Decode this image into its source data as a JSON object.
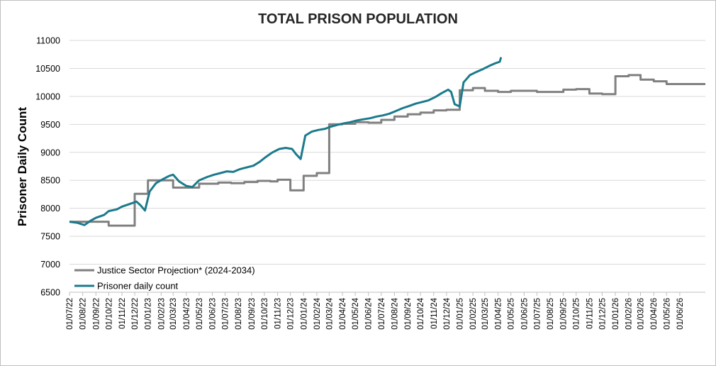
{
  "chart_data": {
    "type": "line",
    "title": "TOTAL PRISON POPULATION",
    "ylabel": "Prisoner  Daily Count",
    "xlabel": "",
    "ylim": [
      6500,
      11000
    ],
    "yticks": [
      6500,
      7000,
      7500,
      8000,
      8500,
      9000,
      9500,
      10000,
      10500,
      11000
    ],
    "x_range": [
      "2022-07-01",
      "2026-07-31"
    ],
    "xtick_labels": [
      "01/07/22",
      "01/08/22",
      "01/09/22",
      "01/10/22",
      "01/11/22",
      "01/12/22",
      "01/01/23",
      "01/02/23",
      "01/03/23",
      "01/04/23",
      "01/05/23",
      "01/06/23",
      "01/07/23",
      "01/08/23",
      "01/09/23",
      "01/10/23",
      "01/11/23",
      "01/12/23",
      "01/01/24",
      "01/02/24",
      "01/03/24",
      "01/04/24",
      "01/05/24",
      "01/06/24",
      "01/07/24",
      "01/08/24",
      "01/09/24",
      "01/10/24",
      "01/11/24",
      "01/12/24",
      "01/01/25",
      "01/02/25",
      "01/03/25",
      "01/04/25",
      "01/05/25",
      "01/06/25",
      "01/07/25",
      "01/08/25",
      "01/09/25",
      "01/10/25",
      "01/11/25",
      "01/12/25",
      "01/01/26",
      "01/02/26",
      "01/03/26",
      "01/04/26",
      "01/05/26",
      "01/06/26"
    ],
    "grid": true,
    "legend_position": "bottom-left",
    "series": [
      {
        "name": "Justice Sector Projection* (2024-2034)",
        "color": "#808080",
        "style": "step",
        "points": [
          [
            "2022-07-01",
            7760
          ],
          [
            "2022-10-01",
            7690
          ],
          [
            "2022-12-01",
            8260
          ],
          [
            "2023-01-01",
            8500
          ],
          [
            "2023-03-01",
            8370
          ],
          [
            "2023-05-01",
            8440
          ],
          [
            "2023-06-15",
            8460
          ],
          [
            "2023-07-15",
            8450
          ],
          [
            "2023-08-15",
            8470
          ],
          [
            "2023-09-15",
            8490
          ],
          [
            "2023-10-15",
            8480
          ],
          [
            "2023-11-01",
            8510
          ],
          [
            "2023-12-01",
            8320
          ],
          [
            "2024-01-01",
            8580
          ],
          [
            "2024-02-01",
            8630
          ],
          [
            "2024-03-01",
            9500
          ],
          [
            "2024-04-01",
            9510
          ],
          [
            "2024-05-01",
            9540
          ],
          [
            "2024-06-01",
            9530
          ],
          [
            "2024-07-01",
            9580
          ],
          [
            "2024-08-01",
            9640
          ],
          [
            "2024-09-01",
            9680
          ],
          [
            "2024-10-01",
            9710
          ],
          [
            "2024-11-01",
            9750
          ],
          [
            "2024-12-01",
            9760
          ],
          [
            "2025-01-01",
            10110
          ],
          [
            "2025-02-01",
            10150
          ],
          [
            "2025-03-01",
            10100
          ],
          [
            "2025-04-01",
            10080
          ],
          [
            "2025-05-01",
            10100
          ],
          [
            "2025-07-01",
            10080
          ],
          [
            "2025-09-01",
            10120
          ],
          [
            "2025-10-01",
            10130
          ],
          [
            "2025-11-01",
            10050
          ],
          [
            "2025-12-01",
            10040
          ],
          [
            "2026-01-01",
            10360
          ],
          [
            "2026-02-01",
            10380
          ],
          [
            "2026-03-01",
            10300
          ],
          [
            "2026-04-01",
            10270
          ],
          [
            "2026-05-01",
            10220
          ],
          [
            "2026-07-31",
            10220
          ]
        ]
      },
      {
        "name": "Prisoner daily count",
        "color": "#1b7a8c",
        "style": "line",
        "points": [
          [
            "2022-07-01",
            7760
          ],
          [
            "2022-07-20",
            7740
          ],
          [
            "2022-08-05",
            7700
          ],
          [
            "2022-08-20",
            7780
          ],
          [
            "2022-09-01",
            7830
          ],
          [
            "2022-09-20",
            7880
          ],
          [
            "2022-10-01",
            7950
          ],
          [
            "2022-10-20",
            7980
          ],
          [
            "2022-11-01",
            8030
          ],
          [
            "2022-11-20",
            8080
          ],
          [
            "2022-12-05",
            8120
          ],
          [
            "2022-12-15",
            8050
          ],
          [
            "2022-12-25",
            7960
          ],
          [
            "2023-01-05",
            8300
          ],
          [
            "2023-01-20",
            8450
          ],
          [
            "2023-02-05",
            8520
          ],
          [
            "2023-02-20",
            8580
          ],
          [
            "2023-03-01",
            8600
          ],
          [
            "2023-03-15",
            8480
          ],
          [
            "2023-04-01",
            8400
          ],
          [
            "2023-04-15",
            8380
          ],
          [
            "2023-05-01",
            8500
          ],
          [
            "2023-05-20",
            8560
          ],
          [
            "2023-06-05",
            8600
          ],
          [
            "2023-06-20",
            8630
          ],
          [
            "2023-07-05",
            8660
          ],
          [
            "2023-07-20",
            8650
          ],
          [
            "2023-08-05",
            8700
          ],
          [
            "2023-08-20",
            8730
          ],
          [
            "2023-09-05",
            8760
          ],
          [
            "2023-09-20",
            8830
          ],
          [
            "2023-10-05",
            8920
          ],
          [
            "2023-10-20",
            9000
          ],
          [
            "2023-11-05",
            9060
          ],
          [
            "2023-11-20",
            9080
          ],
          [
            "2023-12-05",
            9060
          ],
          [
            "2023-12-15",
            8960
          ],
          [
            "2023-12-25",
            8880
          ],
          [
            "2024-01-05",
            9300
          ],
          [
            "2024-01-20",
            9370
          ],
          [
            "2024-02-05",
            9400
          ],
          [
            "2024-02-20",
            9420
          ],
          [
            "2024-03-05",
            9460
          ],
          [
            "2024-03-20",
            9490
          ],
          [
            "2024-04-05",
            9520
          ],
          [
            "2024-04-20",
            9540
          ],
          [
            "2024-05-05",
            9570
          ],
          [
            "2024-05-20",
            9590
          ],
          [
            "2024-06-05",
            9610
          ],
          [
            "2024-06-20",
            9640
          ],
          [
            "2024-07-05",
            9660
          ],
          [
            "2024-07-20",
            9690
          ],
          [
            "2024-08-05",
            9740
          ],
          [
            "2024-08-20",
            9790
          ],
          [
            "2024-09-05",
            9830
          ],
          [
            "2024-09-20",
            9870
          ],
          [
            "2024-10-05",
            9900
          ],
          [
            "2024-10-20",
            9930
          ],
          [
            "2024-11-05",
            9990
          ],
          [
            "2024-11-20",
            10060
          ],
          [
            "2024-12-05",
            10120
          ],
          [
            "2024-12-12",
            10080
          ],
          [
            "2024-12-20",
            9860
          ],
          [
            "2025-01-01",
            9820
          ],
          [
            "2025-01-10",
            10250
          ],
          [
            "2025-01-25",
            10380
          ],
          [
            "2025-02-10",
            10440
          ],
          [
            "2025-02-25",
            10490
          ],
          [
            "2025-03-10",
            10540
          ],
          [
            "2025-03-25",
            10590
          ],
          [
            "2025-04-05",
            10620
          ],
          [
            "2025-04-08",
            10700
          ]
        ]
      }
    ]
  }
}
